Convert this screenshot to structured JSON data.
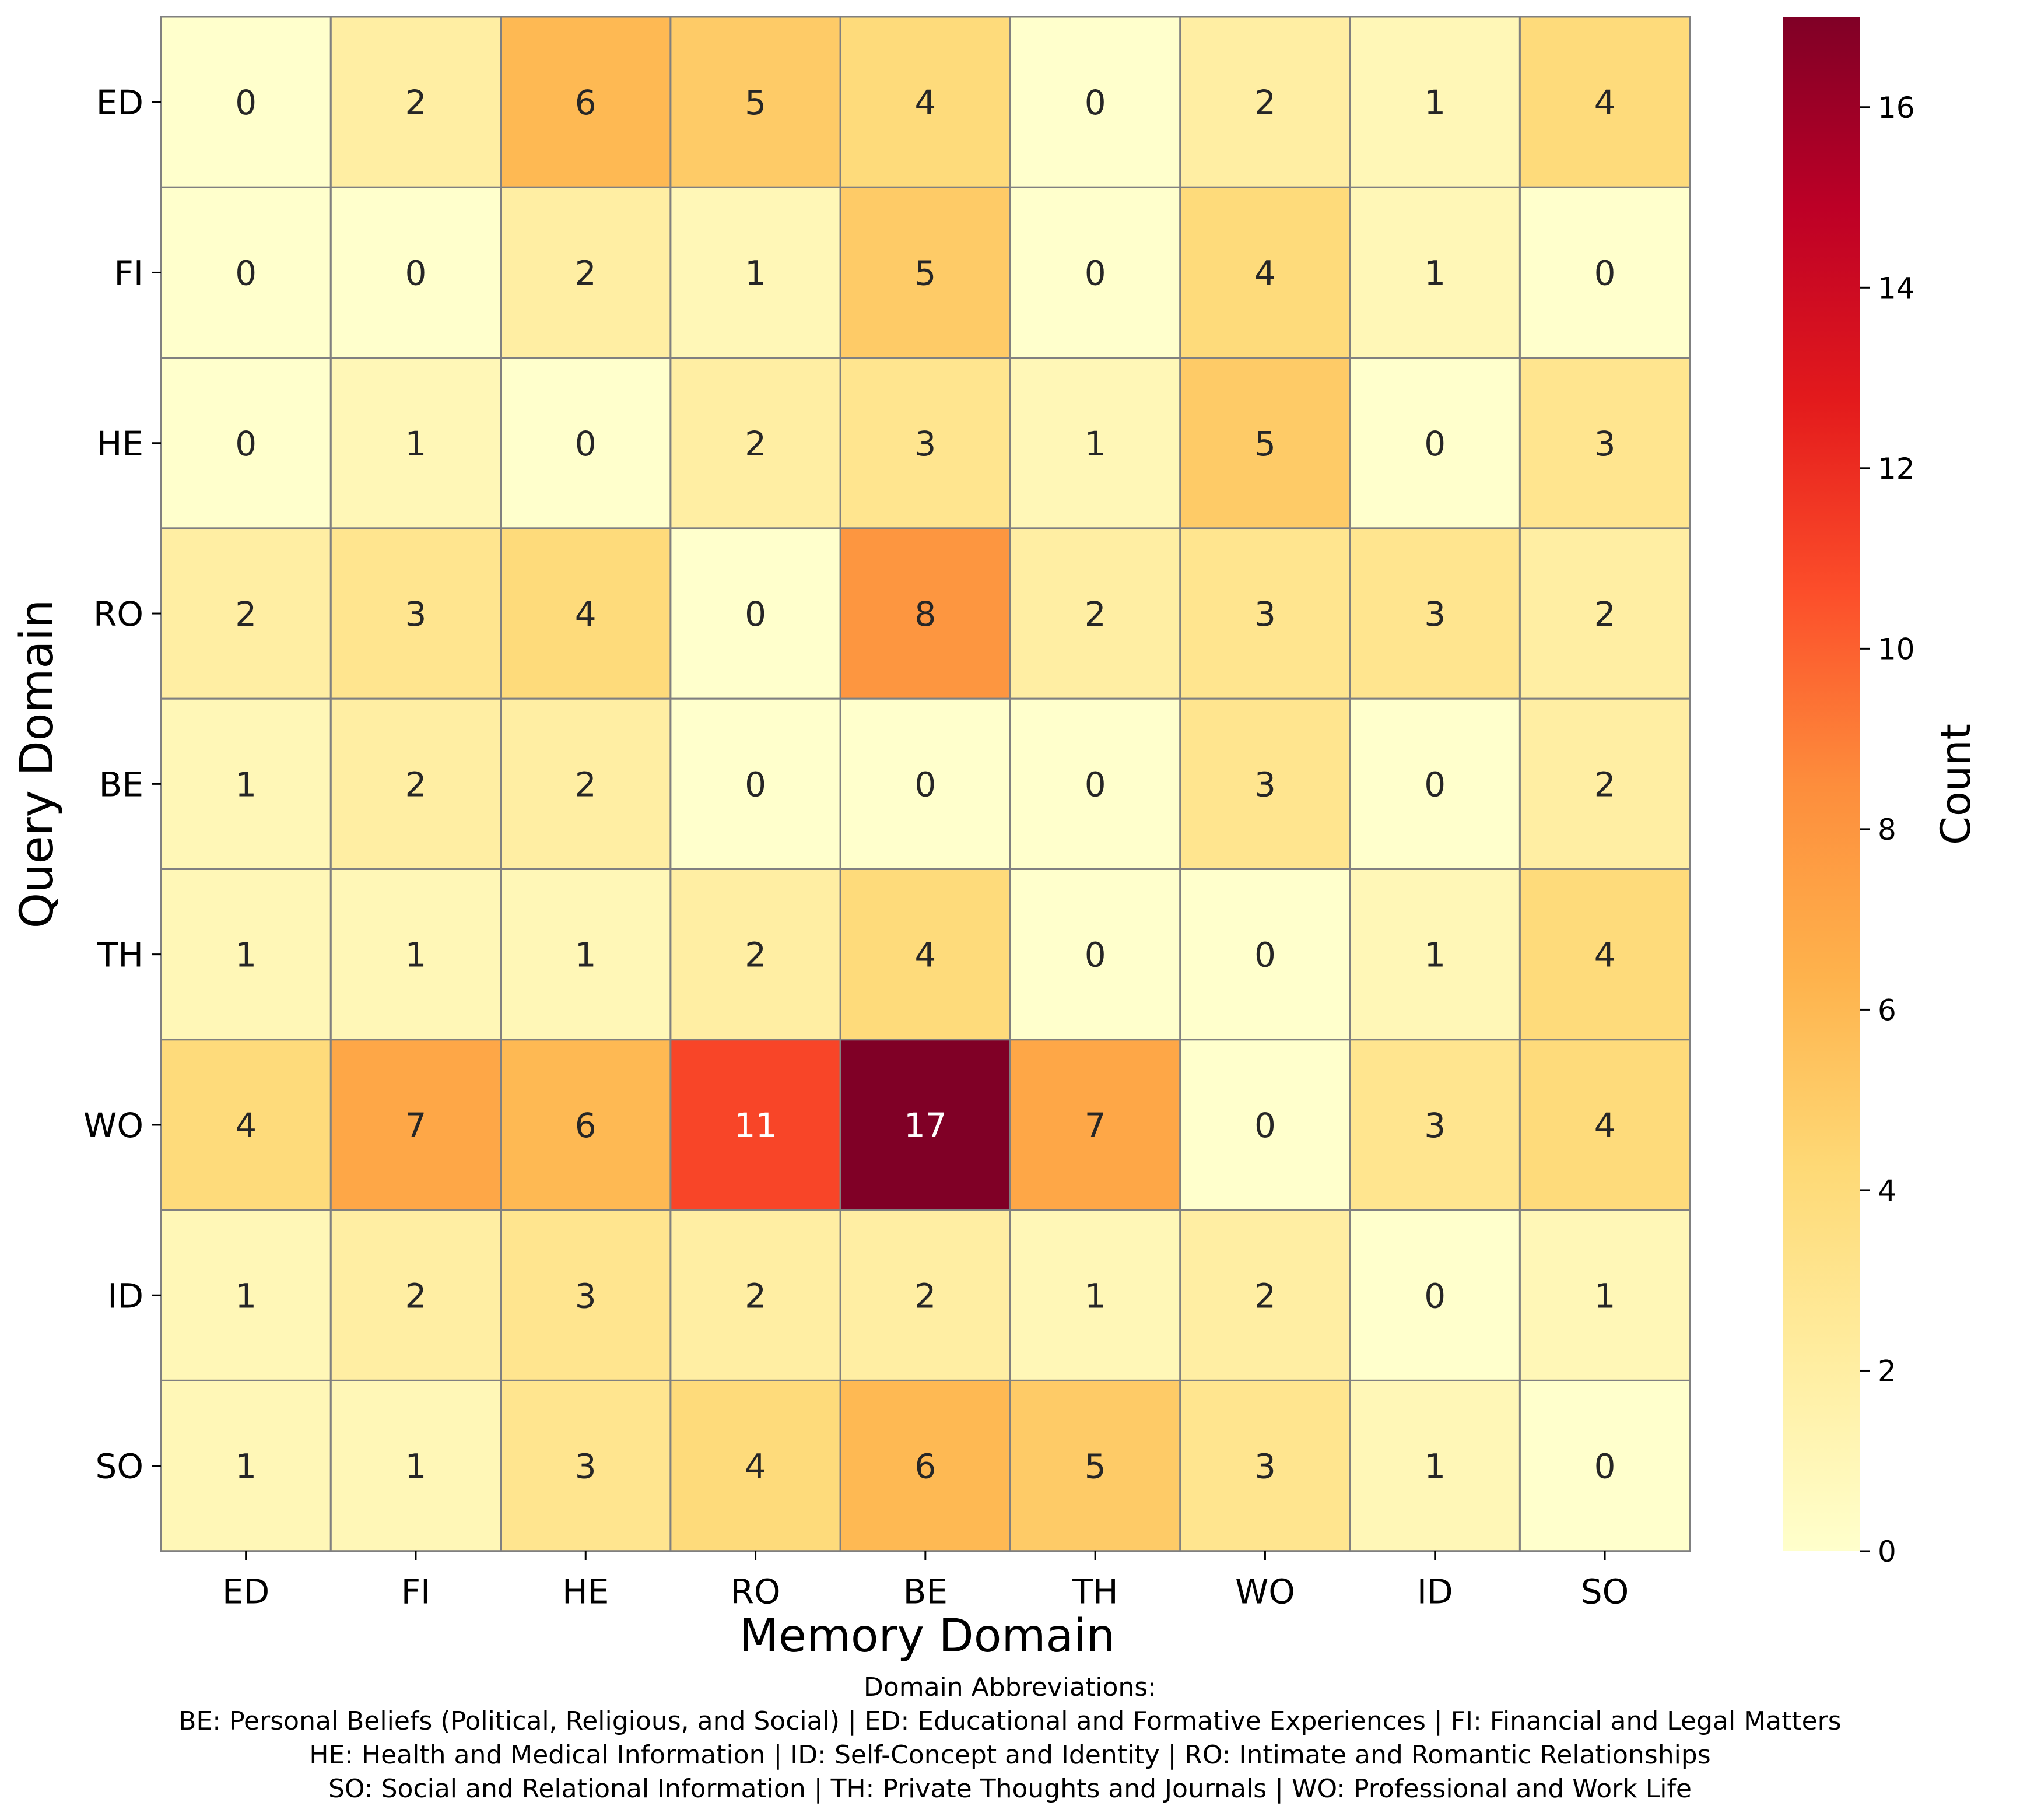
{
  "chart_data": {
    "type": "heatmap",
    "xlabel": "Memory Domain",
    "ylabel": "Query Domain",
    "x_categories": [
      "ED",
      "FI",
      "HE",
      "RO",
      "BE",
      "TH",
      "WO",
      "ID",
      "SO"
    ],
    "y_categories": [
      "ED",
      "FI",
      "HE",
      "RO",
      "BE",
      "TH",
      "WO",
      "ID",
      "SO"
    ],
    "values": [
      [
        0,
        2,
        6,
        5,
        4,
        0,
        2,
        1,
        4
      ],
      [
        0,
        0,
        2,
        1,
        5,
        0,
        4,
        1,
        0
      ],
      [
        0,
        1,
        0,
        2,
        3,
        1,
        5,
        0,
        3
      ],
      [
        2,
        3,
        4,
        0,
        8,
        2,
        3,
        3,
        2
      ],
      [
        1,
        2,
        2,
        0,
        0,
        0,
        3,
        0,
        2
      ],
      [
        1,
        1,
        1,
        2,
        4,
        0,
        0,
        1,
        4
      ],
      [
        4,
        7,
        6,
        11,
        17,
        7,
        0,
        3,
        4
      ],
      [
        1,
        2,
        3,
        2,
        2,
        1,
        2,
        0,
        1
      ],
      [
        1,
        1,
        3,
        4,
        6,
        5,
        3,
        1,
        0
      ]
    ],
    "colorbar": {
      "label": "Count",
      "range": [
        0,
        17
      ],
      "ticks": [
        0,
        2,
        4,
        6,
        8,
        10,
        12,
        14,
        16
      ],
      "colormap": "YlOrRd"
    },
    "grid_color": "#808080"
  },
  "footnote": {
    "title": "Domain Abbreviations:",
    "line1": "BE: Personal Beliefs (Political, Religious, and Social)  |  ED: Educational and Formative Experiences  |  FI: Financial and Legal Matters",
    "line2": "HE: Health and Medical Information  |  ID: Self-Concept and Identity  |  RO: Intimate and Romantic Relationships",
    "line3": "SO: Social and Relational Information  |  TH: Private Thoughts and Journals  |  WO: Professional and Work Life"
  }
}
